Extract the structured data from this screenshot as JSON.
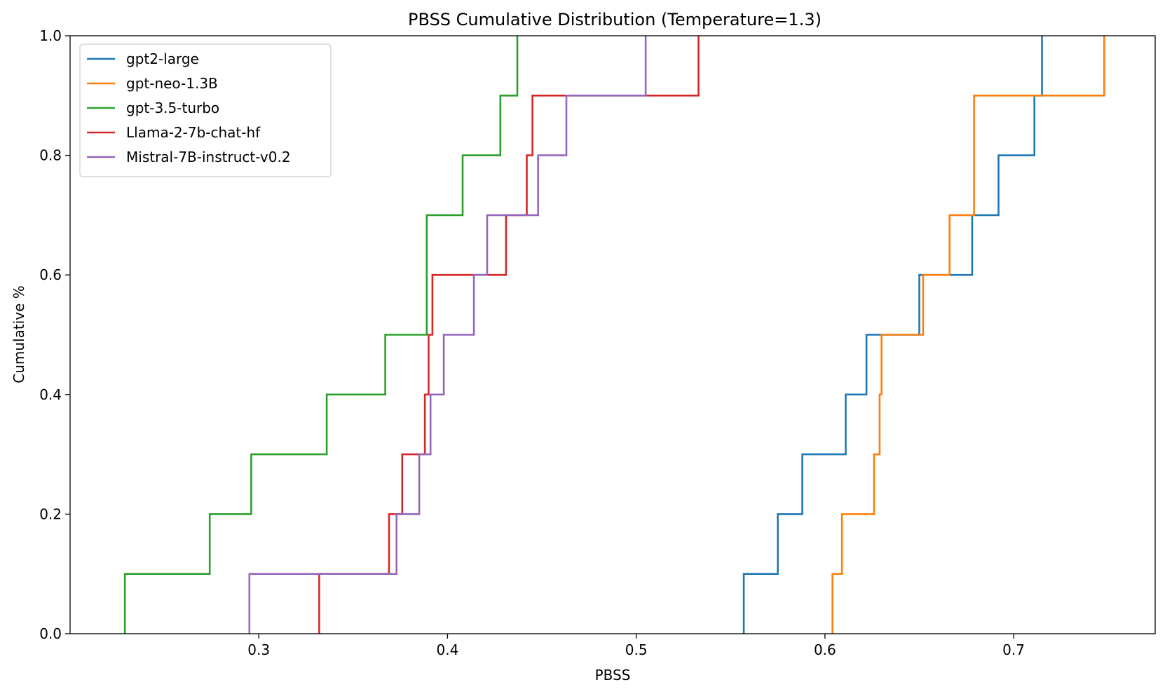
{
  "chart_data": {
    "type": "line",
    "subtype": "step-cdf",
    "title": "PBSS Cumulative Distribution (Temperature=1.3)",
    "xlabel": "PBSS",
    "ylabel": "Cumulative %",
    "xlim": [
      0.2,
      0.775
    ],
    "ylim": [
      0.0,
      1.0
    ],
    "xticks": [
      0.3,
      0.4,
      0.5,
      0.6,
      0.7
    ],
    "xtick_labels": [
      "0.3",
      "0.4",
      "0.5",
      "0.6",
      "0.7"
    ],
    "yticks": [
      0.0,
      0.2,
      0.4,
      0.6,
      0.8,
      1.0
    ],
    "ytick_labels": [
      "0.0",
      "0.2",
      "0.4",
      "0.6",
      "0.8",
      "1.0"
    ],
    "grid": false,
    "legend_position": "top-left",
    "series": [
      {
        "name": "gpt2-large",
        "color": "#1f77b4",
        "values": [
          0.557,
          0.575,
          0.588,
          0.611,
          0.622,
          0.65,
          0.678,
          0.692,
          0.711,
          0.715
        ]
      },
      {
        "name": "gpt-neo-1.3B",
        "color": "#ff7f0e",
        "values": [
          0.604,
          0.609,
          0.626,
          0.629,
          0.63,
          0.652,
          0.666,
          0.679,
          0.679,
          0.748
        ]
      },
      {
        "name": "gpt-3.5-turbo",
        "color": "#2ca02c",
        "values": [
          0.229,
          0.274,
          0.296,
          0.336,
          0.367,
          0.389,
          0.389,
          0.408,
          0.428,
          0.437
        ]
      },
      {
        "name": "Llama-2-7b-chat-hf",
        "color": "#d62728",
        "values": [
          0.332,
          0.369,
          0.376,
          0.388,
          0.39,
          0.392,
          0.431,
          0.442,
          0.445,
          0.533
        ]
      },
      {
        "name": "Mistral-7B-instruct-v0.2",
        "color": "#9467bd",
        "values": [
          0.295,
          0.373,
          0.385,
          0.391,
          0.398,
          0.414,
          0.421,
          0.448,
          0.463,
          0.505
        ]
      }
    ]
  }
}
